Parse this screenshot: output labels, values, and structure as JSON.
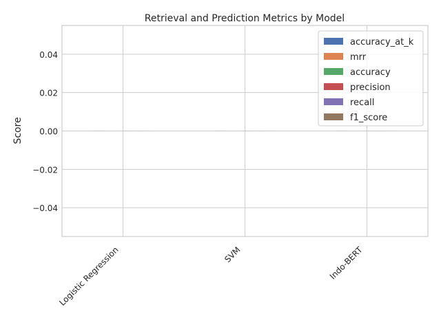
{
  "chart_data": {
    "type": "bar",
    "title": "Retrieval and Prediction Metrics by Model",
    "xlabel": "",
    "ylabel": "Score",
    "categories": [
      "Logistic Regression",
      "SVM",
      "Indo-BERT"
    ],
    "series": [
      {
        "name": "accuracy_at_k",
        "color": "#4c72b0",
        "values": [
          0,
          0,
          0
        ]
      },
      {
        "name": "mrr",
        "color": "#dd8452",
        "values": [
          0,
          0,
          0
        ]
      },
      {
        "name": "accuracy",
        "color": "#55a868",
        "values": [
          0,
          0,
          0
        ]
      },
      {
        "name": "precision",
        "color": "#c44e52",
        "values": [
          0,
          0,
          0
        ]
      },
      {
        "name": "recall",
        "color": "#8172b3",
        "values": [
          0,
          0,
          0
        ]
      },
      {
        "name": "f1_score",
        "color": "#937860",
        "values": [
          0,
          0,
          0
        ]
      }
    ],
    "ylim": [
      -0.055,
      0.055
    ],
    "yticks": [
      -0.04,
      -0.02,
      0.0,
      0.02,
      0.04
    ],
    "ytick_labels": [
      "−0.04",
      "−0.02",
      "0.00",
      "0.02",
      "0.04"
    ],
    "grid": true,
    "legend_position": "top-right"
  }
}
